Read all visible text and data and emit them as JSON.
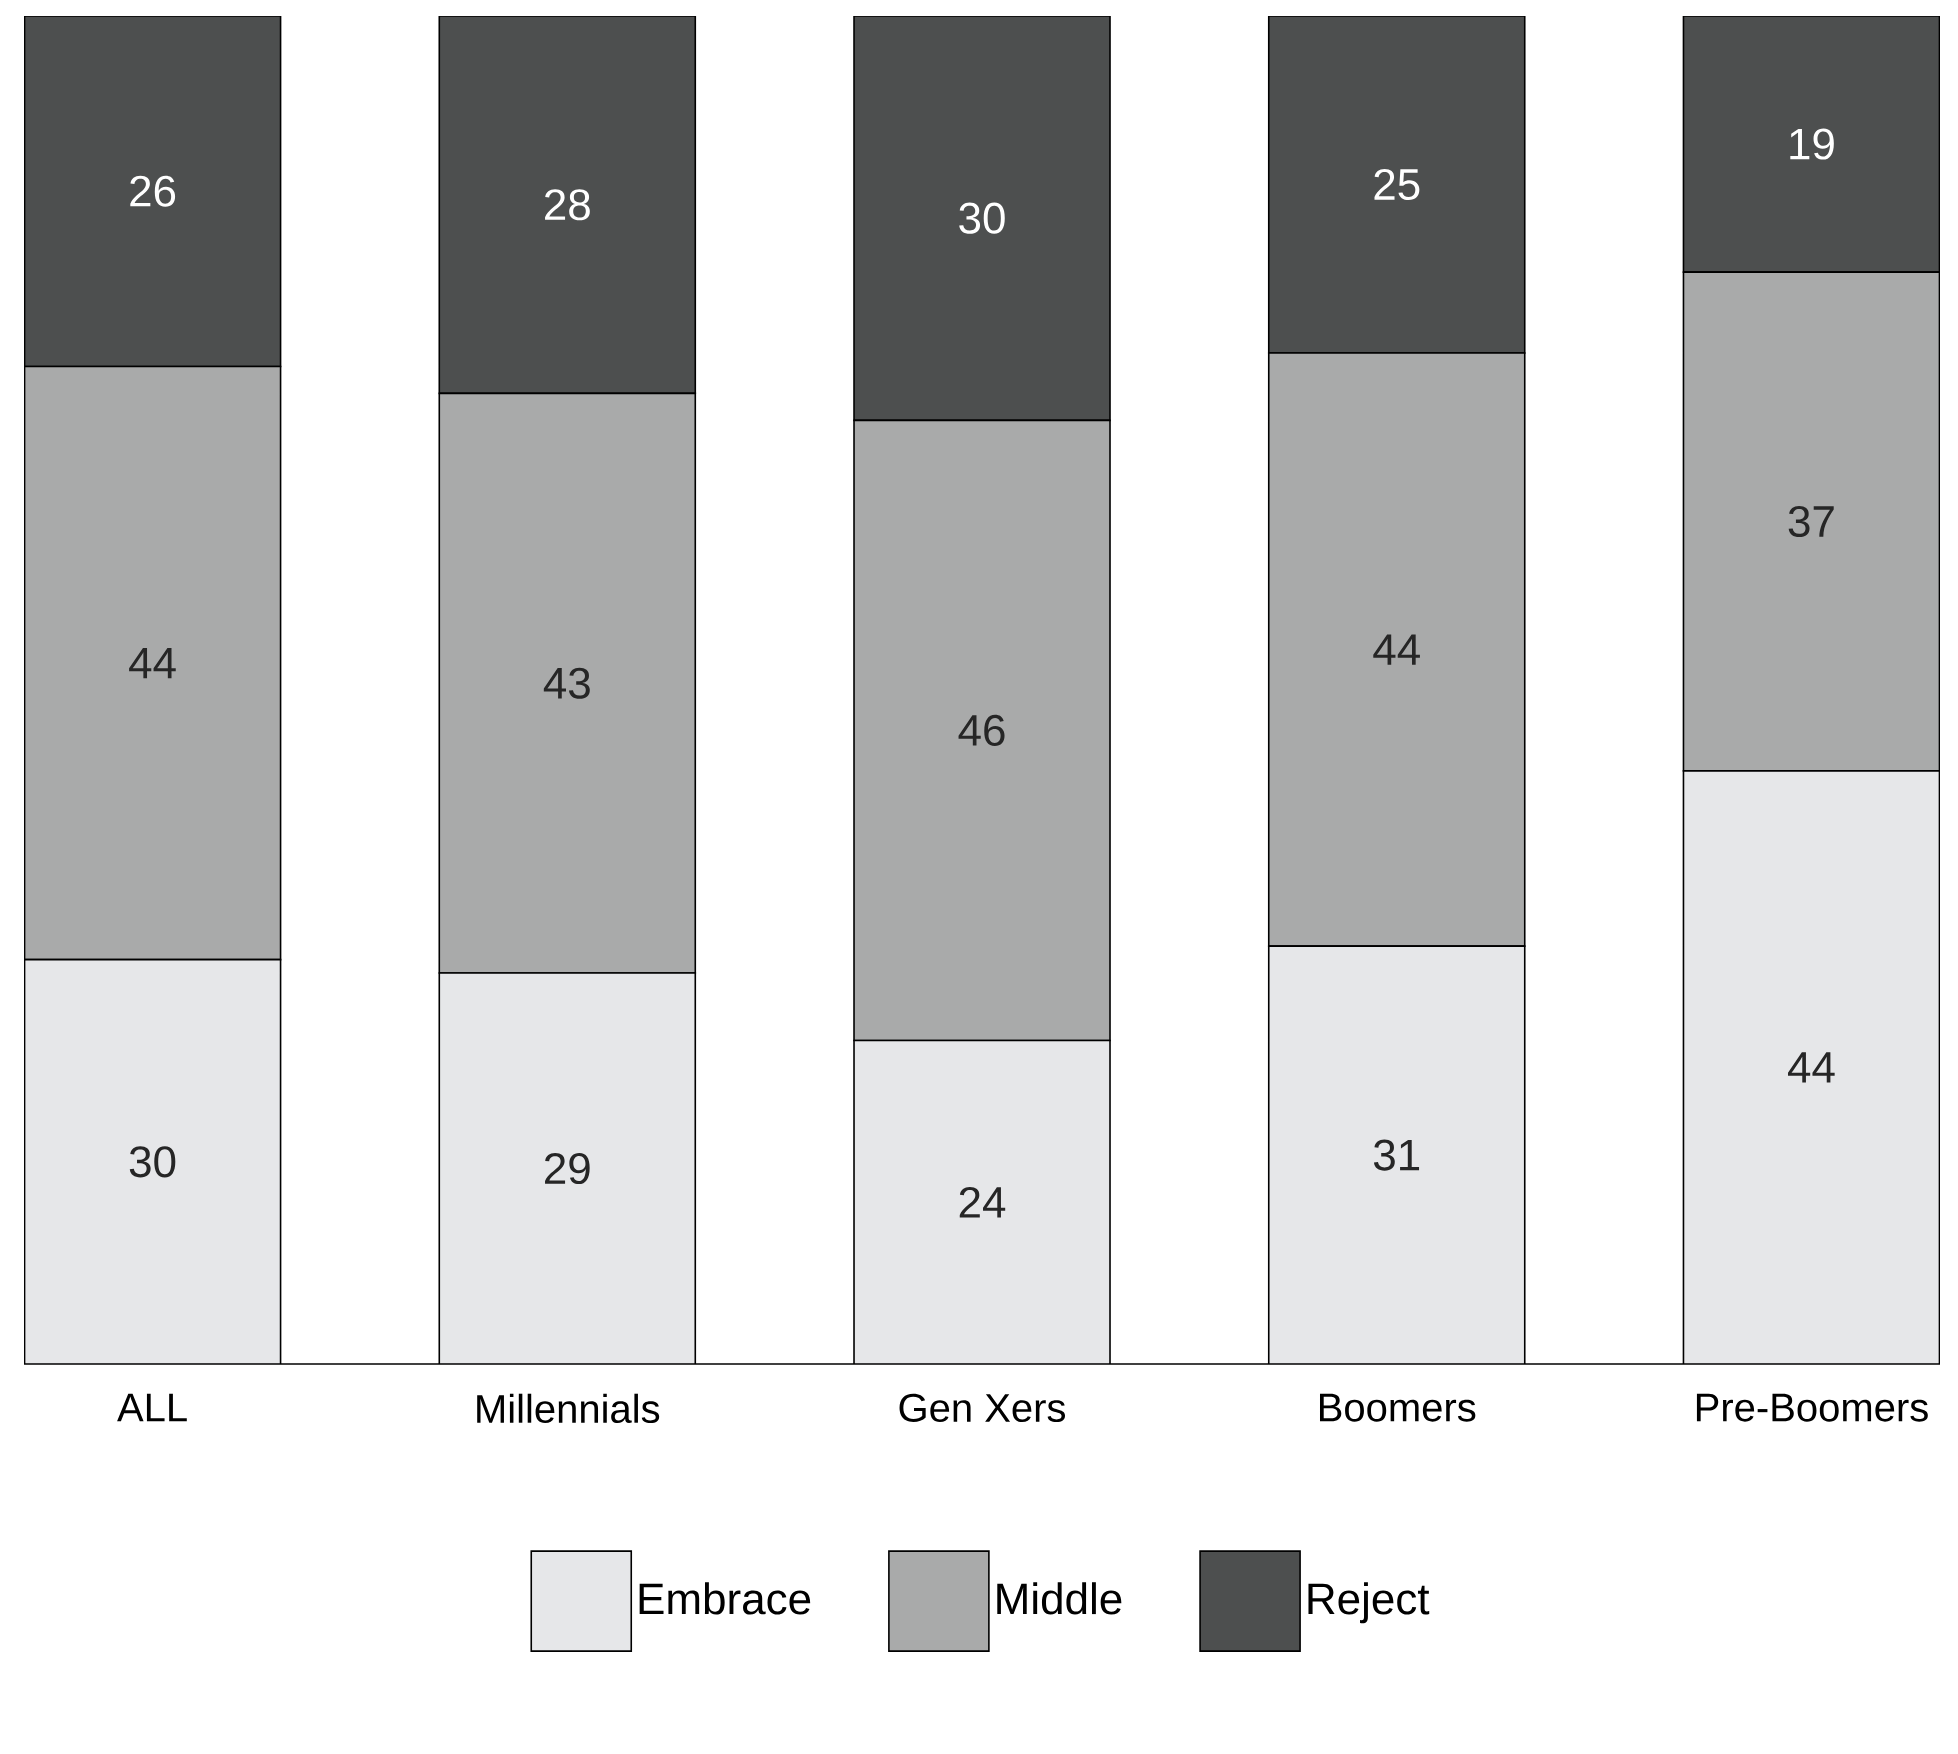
{
  "chart_data": {
    "type": "bar",
    "stacked": true,
    "data_labels": true,
    "legend": "bottom",
    "categories": [
      "ALL",
      "Millennials",
      "Gen Xers",
      "Boomers",
      "Pre-Boomers"
    ],
    "series": [
      {
        "name": "Embrace",
        "color": "#e6e7e9",
        "values": [
          30,
          29,
          24,
          31,
          44
        ]
      },
      {
        "name": "Middle",
        "color": "#a9aaaa",
        "values": [
          44,
          43,
          46,
          44,
          37
        ]
      },
      {
        "name": "Reject",
        "color": "#4d4f4f",
        "values": [
          26,
          28,
          30,
          25,
          19
        ]
      }
    ]
  }
}
